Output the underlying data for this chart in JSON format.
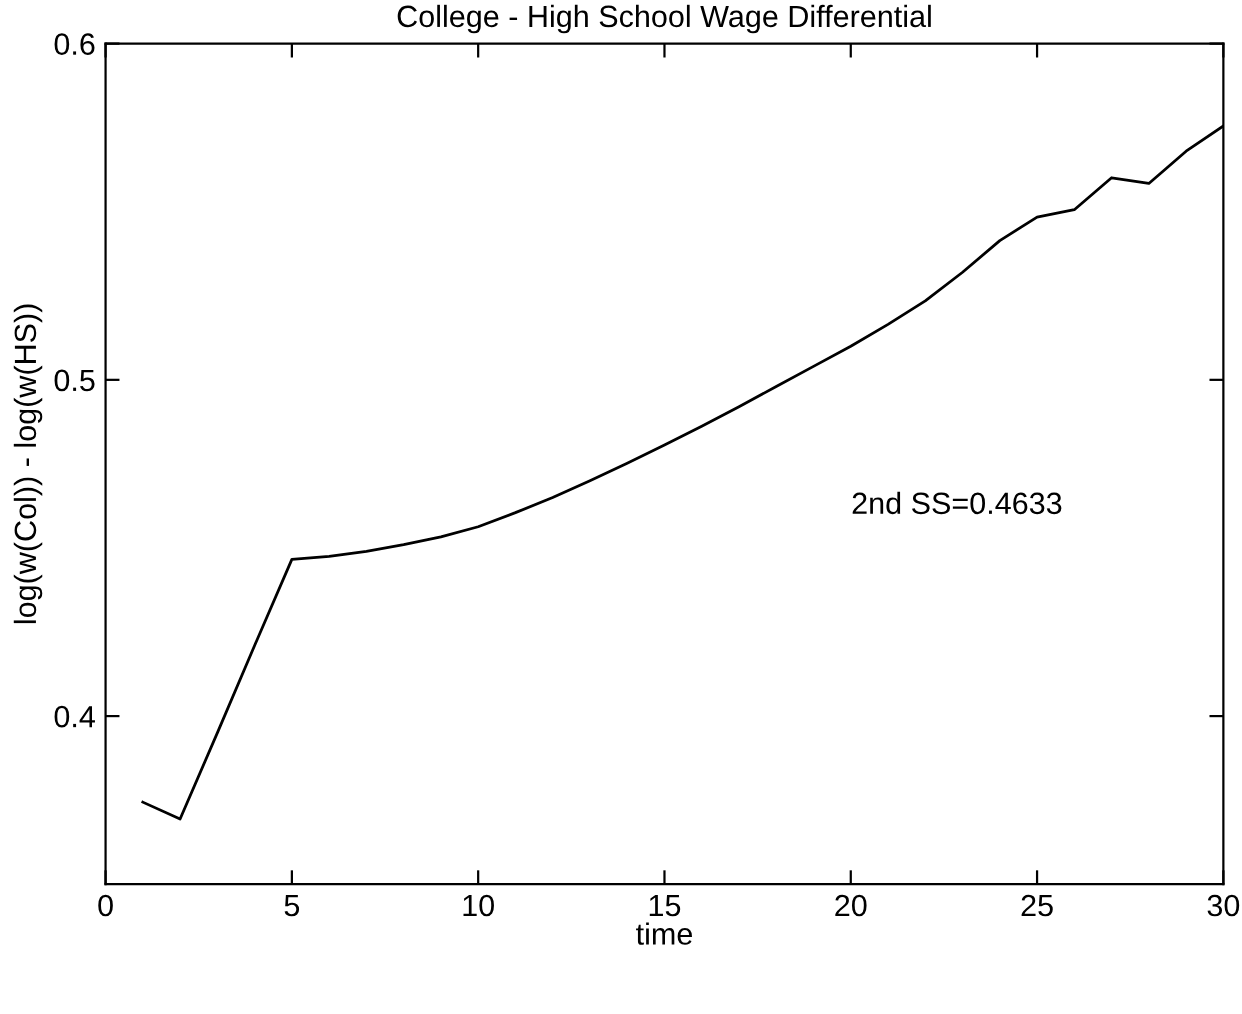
{
  "chart_data": {
    "type": "line",
    "title": "College - High School Wage Differential",
    "xlabel": "time",
    "ylabel": "log(w(Col)) - log(w(HS))",
    "x": [
      1,
      2,
      3,
      4,
      5,
      6,
      7,
      8,
      9,
      10,
      11,
      12,
      13,
      14,
      15,
      16,
      17,
      18,
      19,
      20,
      21,
      22,
      23,
      24,
      25,
      26,
      27,
      28,
      29,
      30
    ],
    "series": [
      {
        "color": "#000000",
        "values": [
          0.3744,
          0.3694,
          0.395,
          0.421,
          0.4466,
          0.4475,
          0.449,
          0.451,
          0.4533,
          0.4563,
          0.4605,
          0.465,
          0.47,
          0.4752,
          0.4806,
          0.4862,
          0.492,
          0.498,
          0.504,
          0.51,
          0.5165,
          0.5235,
          0.532,
          0.5414,
          0.5484,
          0.5506,
          0.5601,
          0.5584,
          0.568,
          0.5755
        ]
      }
    ],
    "xlim": [
      0,
      30
    ],
    "ylim": [
      0.35,
      0.6
    ],
    "xticks": [
      0,
      5,
      10,
      15,
      20,
      25,
      30
    ],
    "yticks": [
      0.4,
      0.5,
      0.6
    ],
    "annotations": [
      "2nd SS=0.4633"
    ],
    "grid": false,
    "legend": false,
    "marker": "none",
    "line_style": "solid"
  }
}
